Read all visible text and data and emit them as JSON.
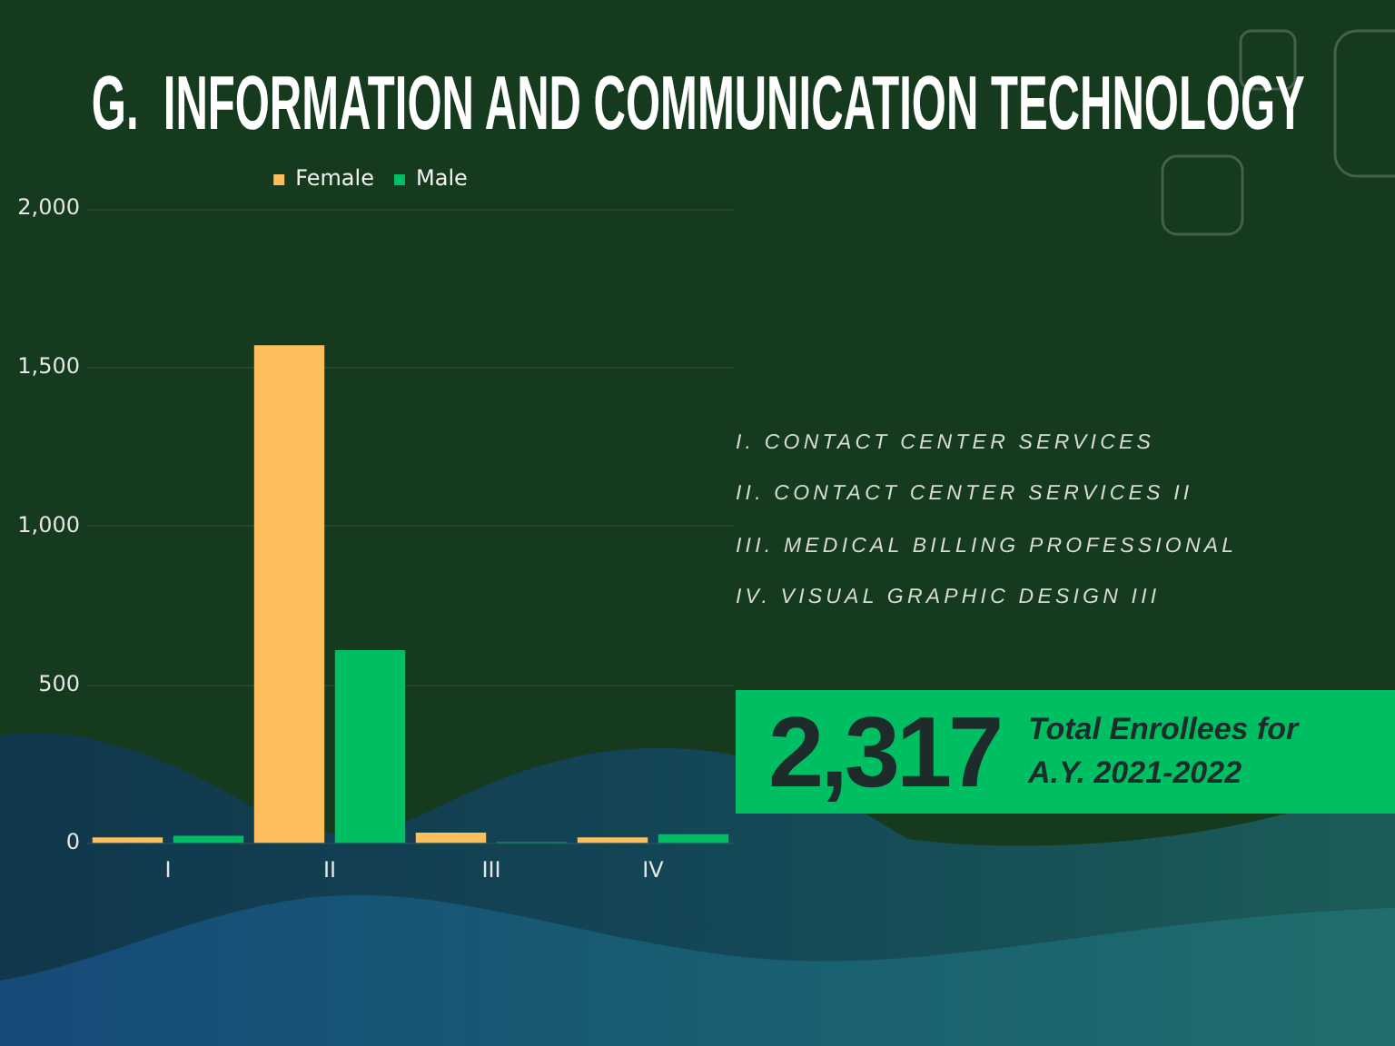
{
  "chart_data": {
    "type": "bar",
    "title": "G.  INFORMATION AND COMMUNICATION TECHNOLOGY",
    "categories": [
      "I",
      "II",
      "III",
      "IV"
    ],
    "series": [
      {
        "name": "Female",
        "color": "#ffbe5c",
        "values": [
          20,
          1570,
          35,
          20
        ]
      },
      {
        "name": "Male",
        "color": "#00bf63",
        "values": [
          25,
          610,
          5,
          30
        ]
      }
    ],
    "ylim": [
      0,
      2000
    ],
    "yticks": [
      0,
      500,
      {
        "value": 1000,
        "label": "1,000"
      },
      {
        "value": 1500,
        "label": "1,500"
      },
      {
        "value": 2000,
        "label": "2,000"
      }
    ],
    "grid": "y",
    "legend": "top",
    "annotations": [
      "I. CONTACT CENTER SERVICES",
      "II. CONTACT CENTER SERVICES II",
      "III. MEDICAL BILLING PROFESSIONAL",
      "IV. VISUAL GRAPHIC DESIGN III",
      "2,317",
      "Total Enrollees for A.Y. 2021-2022"
    ]
  }
}
